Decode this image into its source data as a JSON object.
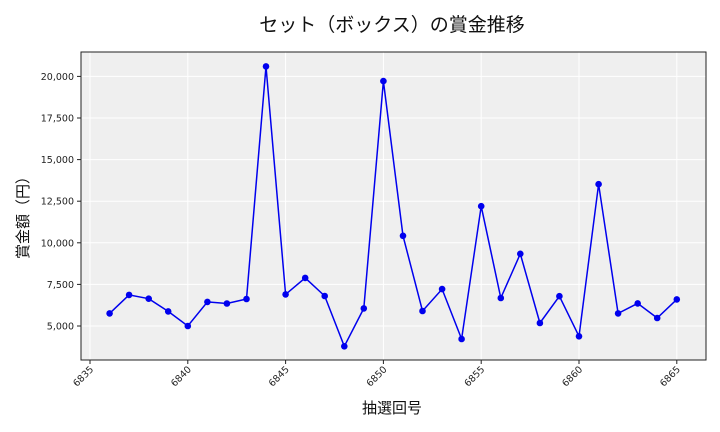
{
  "chart_data": {
    "type": "line",
    "title": "セット（ボックス）の賞金推移",
    "xlabel": "抽選回号",
    "ylabel": "賞金額（円）",
    "x": [
      6836,
      6837,
      6838,
      6839,
      6840,
      6841,
      6842,
      6843,
      6844,
      6845,
      6846,
      6847,
      6848,
      6849,
      6850,
      6851,
      6852,
      6853,
      6854,
      6855,
      6856,
      6857,
      6858,
      6859,
      6860,
      6861,
      6862,
      6863,
      6864,
      6865
    ],
    "series": [
      {
        "name": "賞金額",
        "color": "#0000ee",
        "marker": "circle",
        "values": [
          5760,
          6870,
          6640,
          5880,
          5000,
          6450,
          6350,
          6620,
          20600,
          6900,
          7890,
          6800,
          3780,
          6060,
          19720,
          10420,
          5900,
          7220,
          4220,
          12200,
          6680,
          9340,
          5180,
          6790,
          4380,
          13520,
          5760,
          6360,
          5480,
          6600
        ]
      }
    ],
    "xticks": [
      6835,
      6840,
      6845,
      6850,
      6855,
      6860,
      6865
    ],
    "xtick_labels": [
      "6835",
      "6840",
      "6845",
      "6850",
      "6855",
      "6860",
      "6865"
    ],
    "yticks": [
      5000,
      7500,
      10000,
      12500,
      15000,
      17500,
      20000
    ],
    "ytick_labels": [
      "5,000",
      "7,500",
      "10,000",
      "12,500",
      "15,000",
      "17,500",
      "20,000"
    ],
    "xlim": [
      6834.5,
      6866.5
    ],
    "ylim": [
      3000,
      21500
    ],
    "grid": true,
    "legend": null,
    "plot_background": "#efefef",
    "grid_color": "#ffffff"
  }
}
